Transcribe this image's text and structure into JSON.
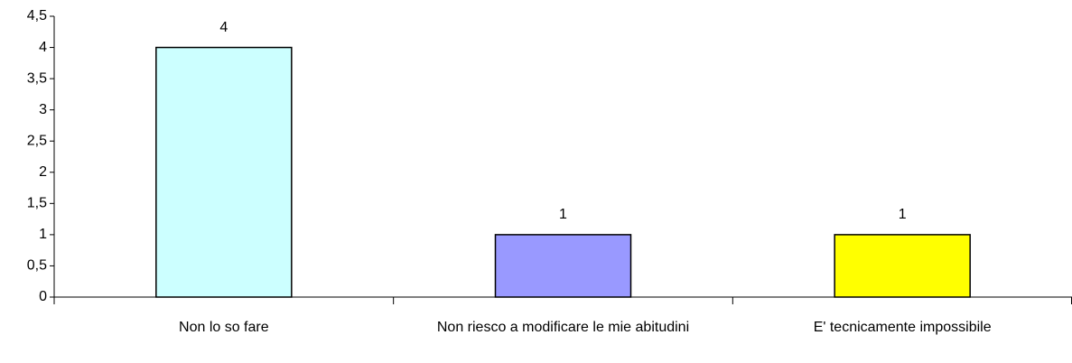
{
  "chart_data": {
    "type": "bar",
    "categories": [
      "Non lo so fare",
      "Non riesco a modificare le mie abitudini",
      "E' tecnicamente impossibile"
    ],
    "values": [
      4,
      1,
      1
    ],
    "colors": [
      "#ccffff",
      "#9999ff",
      "#ffff00"
    ],
    "ylim": [
      0,
      4.5
    ],
    "yticks": [
      0,
      {
        "value": 0.5,
        "label": "0,5"
      },
      1,
      {
        "value": 1.5,
        "label": "1,5"
      },
      2,
      {
        "value": 2.5,
        "label": "2,5"
      },
      3,
      {
        "value": 3.5,
        "label": "3,5"
      },
      4,
      {
        "value": 4.5,
        "label": "4,5"
      }
    ],
    "grid": false
  }
}
